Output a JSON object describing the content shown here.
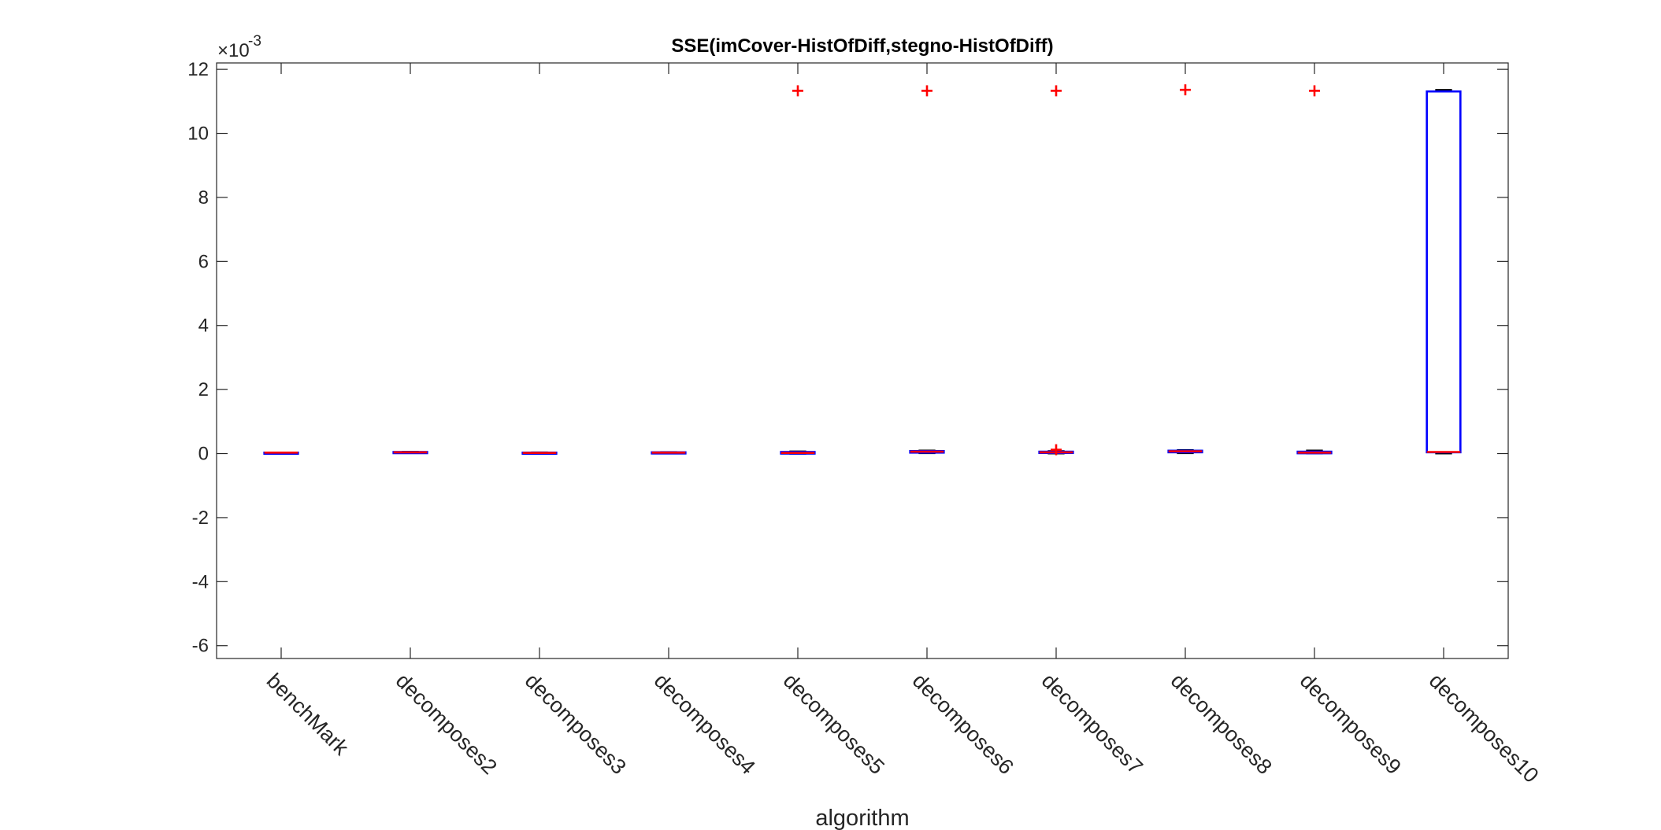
{
  "chart_data": {
    "type": "box",
    "title": "SSE(imCover-HistOfDiff,stegno-HistOfDiff)",
    "xlabel": "algorithm",
    "ylabel": "",
    "y_exponent_label": "×10",
    "y_exponent_power": "-3",
    "ylim": [
      -6.4,
      12.2
    ],
    "yticks": [
      -6,
      -4,
      -2,
      0,
      2,
      4,
      6,
      8,
      10,
      12
    ],
    "ytick_labels": [
      "-6",
      "-4",
      "-2",
      "0",
      "2",
      "4",
      "6",
      "8",
      "10",
      "12"
    ],
    "categories": [
      "benchMark",
      "decomposes2",
      "decomposes3",
      "decomposes4",
      "decomposes5",
      "decomposes6",
      "decomposes7",
      "decomposes8",
      "decomposes9",
      "decomposes10"
    ],
    "boxes": [
      {
        "whisker_low": 0.03,
        "q1": 0.03,
        "median": 0.03,
        "q3": 0.03,
        "whisker_high": 0.03,
        "outliers": []
      },
      {
        "whisker_low": 0.02,
        "q1": 0.03,
        "median": 0.04,
        "q3": 0.05,
        "whisker_high": 0.06,
        "outliers": []
      },
      {
        "whisker_low": 0.01,
        "q1": 0.02,
        "median": 0.02,
        "q3": 0.03,
        "whisker_high": 0.04,
        "outliers": []
      },
      {
        "whisker_low": 0.01,
        "q1": 0.02,
        "median": 0.03,
        "q3": 0.04,
        "whisker_high": 0.05,
        "outliers": []
      },
      {
        "whisker_low": -0.01,
        "q1": 0.0,
        "median": 0.02,
        "q3": 0.05,
        "whisker_high": 0.07,
        "outliers": [
          11.33
        ]
      },
      {
        "whisker_low": 0.01,
        "q1": 0.03,
        "median": 0.06,
        "q3": 0.08,
        "whisker_high": 0.1,
        "outliers": [
          11.33
        ]
      },
      {
        "whisker_low": 0.0,
        "q1": 0.02,
        "median": 0.04,
        "q3": 0.06,
        "whisker_high": 0.08,
        "outliers": [
          11.33,
          0.12
        ]
      },
      {
        "whisker_low": 0.01,
        "q1": 0.04,
        "median": 0.07,
        "q3": 0.09,
        "whisker_high": 0.11,
        "outliers": [
          11.36
        ]
      },
      {
        "whisker_low": 0.0,
        "q1": 0.01,
        "median": 0.03,
        "q3": 0.06,
        "whisker_high": 0.1,
        "outliers": [
          11.33
        ]
      },
      {
        "whisker_low": 0.0,
        "q1": 0.04,
        "median": 0.05,
        "q3": 11.31,
        "whisker_high": 11.36,
        "outliers": []
      }
    ],
    "grid": false,
    "legend": "none",
    "colors": {
      "box": "#0000ff",
      "median": "#ff0000",
      "whisker": "#000000",
      "outlier": "#ff0000",
      "axis": "#262626"
    }
  }
}
